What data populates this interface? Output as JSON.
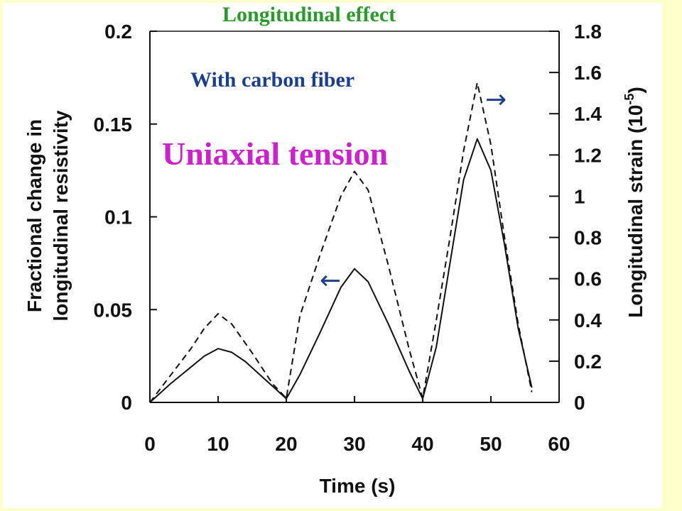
{
  "title": "Longitudinal effect",
  "subtitle": "With carbon fiber",
  "condition": "Uniaxial tension",
  "colors": {
    "background": "#ffffcc",
    "title": "#2a9a2a",
    "subtitle": "#1c3f8c",
    "condition": "#cc22cc"
  },
  "chart_data": {
    "type": "line",
    "xlabel": "Time (s)",
    "ylabel_left_line1": "Fractional change in",
    "ylabel_left_line2": "longitudinal resistivity",
    "ylabel_right_main": "Longitudinal strain (10",
    "ylabel_right_exp": "-5",
    "ylabel_right_close": ")",
    "xlim": [
      0,
      60
    ],
    "ylim_left": [
      0,
      0.2
    ],
    "ylim_right": [
      0,
      1.8
    ],
    "x_ticks": [
      "0",
      "10",
      "20",
      "30",
      "40",
      "50",
      "60"
    ],
    "y_left_ticks": [
      "0",
      "0.05",
      "0.1",
      "0.15",
      "0.2"
    ],
    "y_right_ticks": [
      "0",
      "0.2",
      "0.4",
      "0.6",
      "0.8",
      "1",
      "1.2",
      "1.4",
      "1.6",
      "1.8"
    ],
    "arrow_left": "←",
    "arrow_right": "→",
    "series": [
      {
        "axis": "left",
        "style": "solid",
        "x": [
          0,
          3,
          6,
          8,
          10,
          12,
          14,
          17,
          20,
          22,
          25,
          28,
          30,
          32,
          35,
          38,
          40,
          42,
          44,
          46,
          48,
          50,
          52,
          54,
          56
        ],
        "y": [
          0,
          0.01,
          0.019,
          0.025,
          0.029,
          0.027,
          0.022,
          0.012,
          0.002,
          0.015,
          0.038,
          0.062,
          0.072,
          0.065,
          0.042,
          0.017,
          0.002,
          0.03,
          0.075,
          0.12,
          0.142,
          0.125,
          0.085,
          0.04,
          0.008
        ]
      },
      {
        "axis": "right",
        "style": "dashed",
        "x": [
          0,
          3,
          6,
          8,
          10,
          12,
          15,
          18,
          20,
          22,
          25,
          28,
          30,
          32,
          35,
          38,
          40,
          42,
          44,
          46,
          48,
          50,
          52,
          54,
          56
        ],
        "y": [
          0,
          0.13,
          0.26,
          0.36,
          0.43,
          0.38,
          0.24,
          0.09,
          0.02,
          0.42,
          0.72,
          1.0,
          1.12,
          1.03,
          0.66,
          0.26,
          0.02,
          0.4,
          0.8,
          1.22,
          1.55,
          1.25,
          0.8,
          0.38,
          0.05
        ]
      }
    ]
  }
}
